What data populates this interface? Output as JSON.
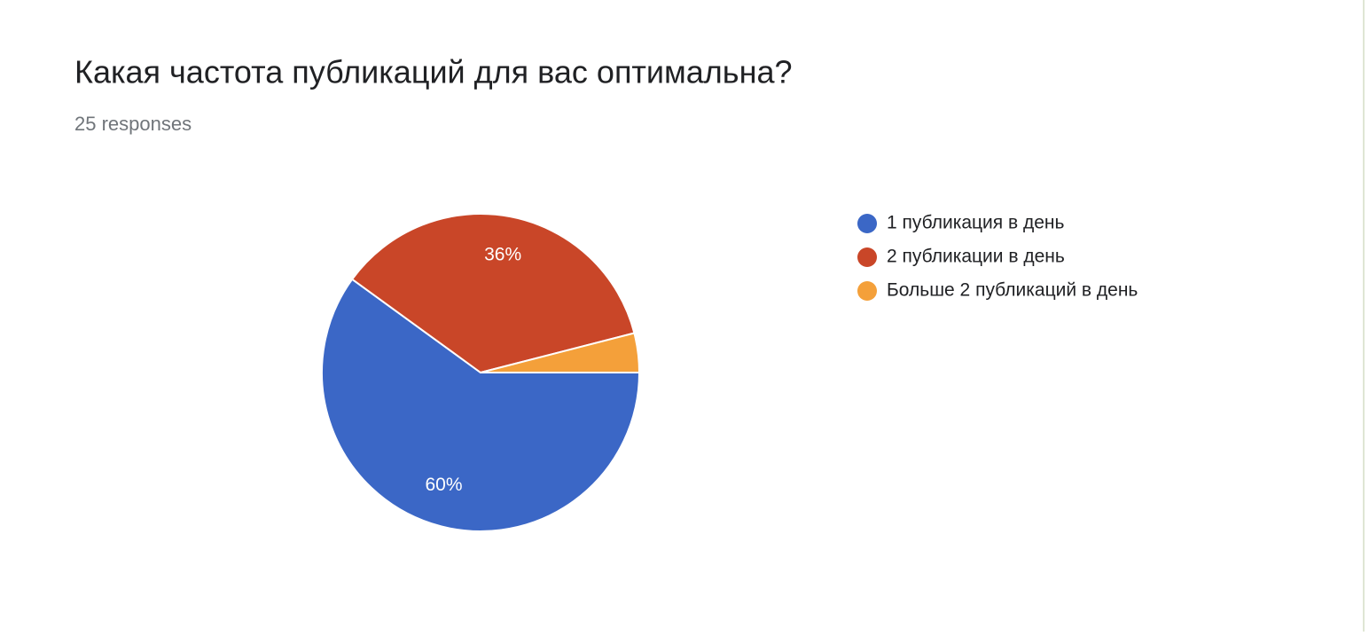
{
  "chart_data": {
    "type": "pie",
    "title": "Какая частота публикаций для вас оптимальна?",
    "subtitle": "25 responses",
    "categories": [
      "1 публикация в день",
      "2 публикации в день",
      "Больше 2 публикаций в день"
    ],
    "values": [
      60,
      36,
      4
    ],
    "value_labels": [
      "60%",
      "36%",
      null
    ],
    "colors": [
      "#3b67c6",
      "#c94628",
      "#f4a03a"
    ],
    "legend": "right"
  }
}
